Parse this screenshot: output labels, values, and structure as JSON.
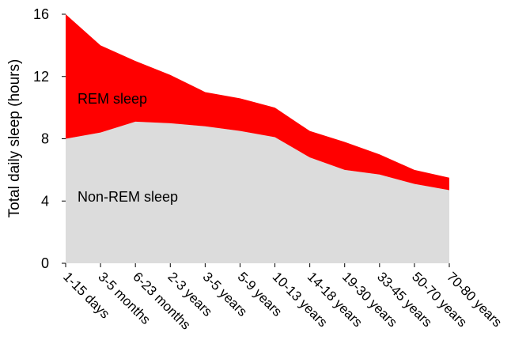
{
  "chart_data": {
    "type": "area",
    "stacked": true,
    "title": "",
    "xlabel": "",
    "ylabel": "Total daily sleep (hours)",
    "ylim": [
      0,
      16
    ],
    "yticks": [
      "0",
      "4",
      "8",
      "12",
      "16"
    ],
    "categories": [
      "1-15 days",
      "3-5 months",
      "6-23 months",
      "2-3 years",
      "3-5 years",
      "5-9 years",
      "10-13 years",
      "14-18 years",
      "19-30 years",
      "33-45 years",
      "50-70 years",
      "70-80 years"
    ],
    "series": [
      {
        "name": "Non-REM sleep",
        "values": [
          8.0,
          8.4,
          9.1,
          9.0,
          8.8,
          8.5,
          8.1,
          6.8,
          6.0,
          5.7,
          5.1,
          4.7
        ],
        "color": "#dcdcdc"
      },
      {
        "name": "REM sleep",
        "values": [
          8.0,
          5.6,
          3.9,
          3.1,
          2.2,
          2.1,
          1.9,
          1.7,
          1.8,
          1.3,
          0.9,
          0.8
        ],
        "color": "#ff0000"
      }
    ],
    "totals": [
      16.0,
      14.0,
      13.0,
      12.1,
      11.0,
      10.6,
      10.0,
      8.5,
      7.8,
      7.0,
      6.0,
      5.5
    ],
    "annotations": {
      "rem": "REM sleep",
      "nonrem": "Non-REM sleep"
    },
    "grid": false
  }
}
